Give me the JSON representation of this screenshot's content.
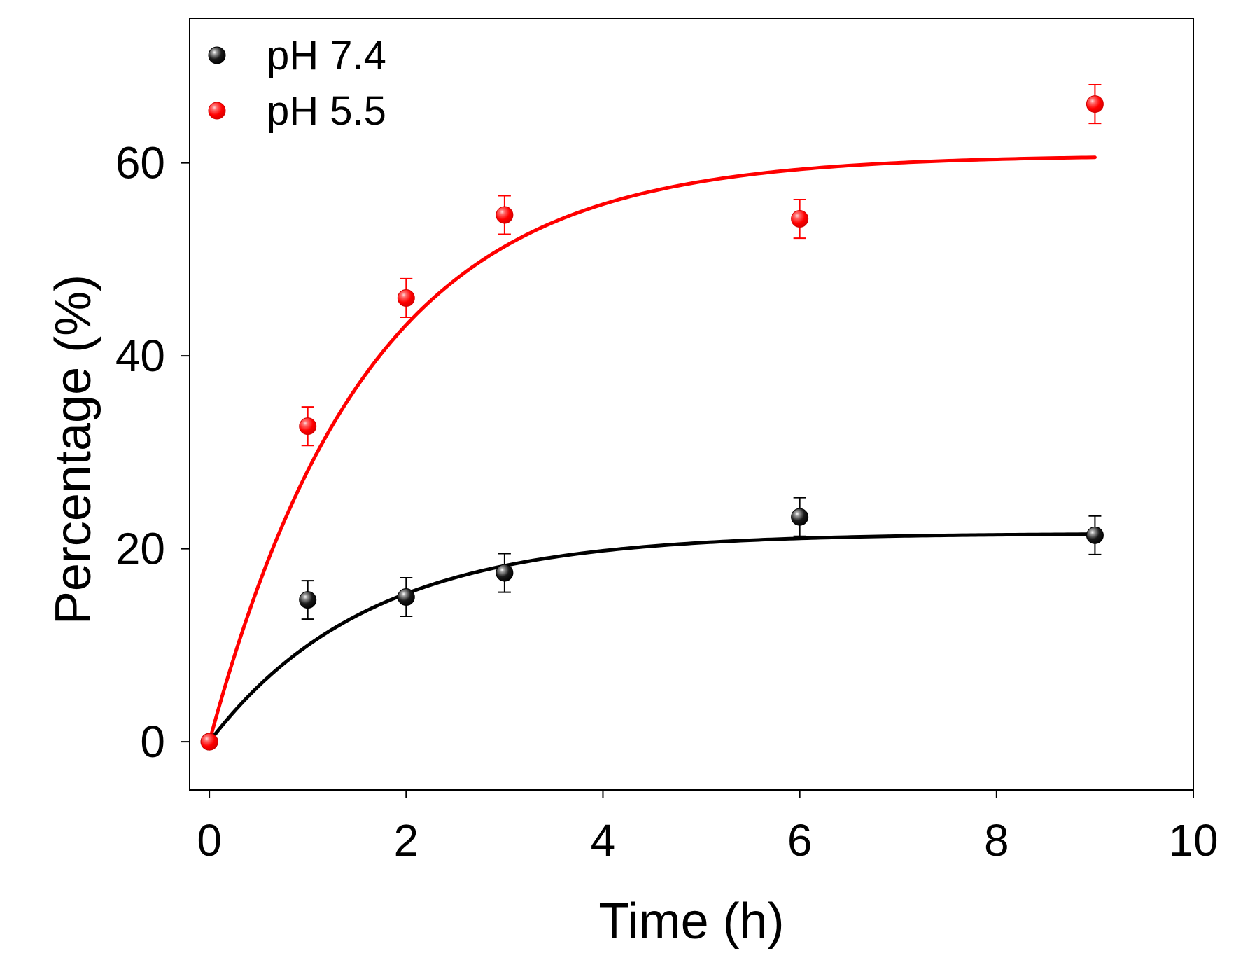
{
  "chart_data": {
    "type": "scatter",
    "title": "",
    "xlabel": "Time (h)",
    "ylabel": "Percentage (%)",
    "xlim": [
      -0.2,
      10
    ],
    "ylim": [
      -5,
      75
    ],
    "xticks": [
      0,
      2,
      4,
      6,
      8,
      10
    ],
    "yticks": [
      0,
      20,
      40,
      60
    ],
    "xtick_labels": [
      "0",
      "2",
      "4",
      "6",
      "8",
      "10"
    ],
    "ytick_labels": [
      "0",
      "20",
      "40",
      "60"
    ],
    "grid": false,
    "legend_position": "top-left",
    "series": [
      {
        "name": "pH 7.4",
        "color": "#000000",
        "x": [
          0,
          1,
          2,
          3,
          6,
          9
        ],
        "y": [
          0,
          14.7,
          15.0,
          17.5,
          23.3,
          21.4
        ],
        "err": [
          0,
          2.0,
          2.0,
          2.0,
          2.0,
          2.0
        ],
        "fit": {
          "model": "A*(1-exp(-k*t))",
          "A": 21.6,
          "k": 0.62
        }
      },
      {
        "name": "pH 5.5",
        "color": "#ff0000",
        "x": [
          0,
          1,
          2,
          3,
          6,
          9
        ],
        "y": [
          0,
          32.7,
          46.0,
          54.6,
          54.2,
          66.1
        ],
        "err": [
          0,
          2.0,
          2.0,
          2.0,
          2.0,
          2.0
        ],
        "fit": {
          "model": "A*(1-exp(-k*t))",
          "A": 60.8,
          "k": 0.62
        }
      }
    ]
  }
}
